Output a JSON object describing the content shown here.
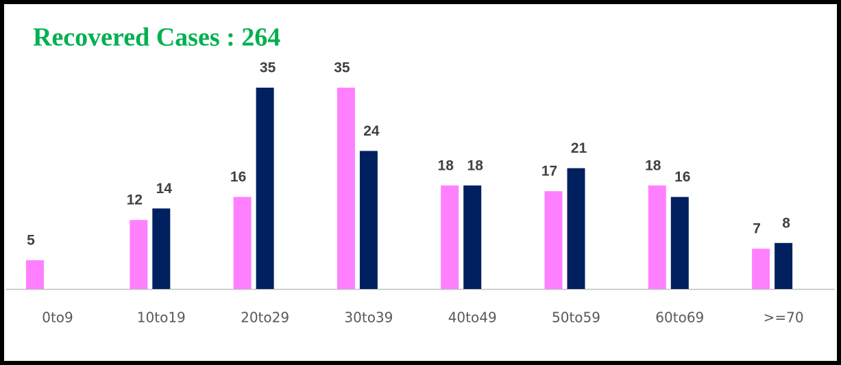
{
  "chart_data": {
    "type": "bar",
    "title": "Recovered Cases : 264",
    "categories": [
      "0to9",
      "10to19",
      "20to29",
      "30to39",
      "40to49",
      "50to59",
      "60to69",
      ">=70"
    ],
    "series": [
      {
        "color": "#ff80ff",
        "values": [
          5,
          12,
          16,
          35,
          18,
          17,
          18,
          7
        ]
      },
      {
        "color": "#002060",
        "values": [
          null,
          14,
          35,
          24,
          18,
          21,
          16,
          8
        ]
      }
    ]
  }
}
